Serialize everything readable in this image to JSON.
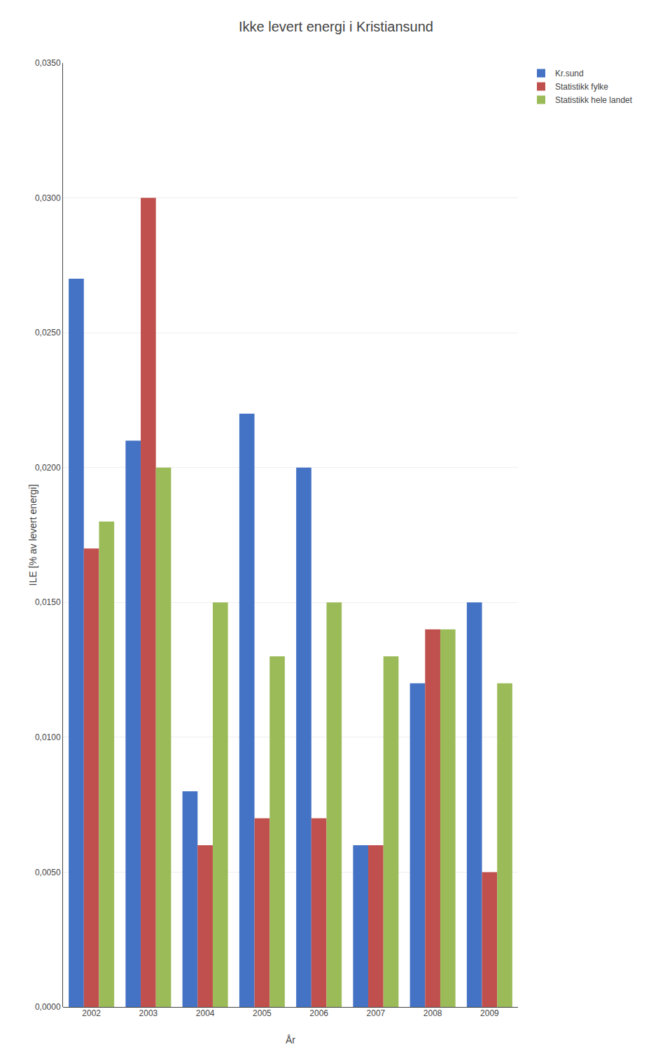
{
  "chart_data": {
    "type": "bar",
    "title": "Ikke levert energi i Kristiansund",
    "x_label": "År",
    "y_label": "ILE [% av levert energi]",
    "categories": [
      "2002",
      "2003",
      "2004",
      "2005",
      "2006",
      "2007",
      "2008",
      "2009"
    ],
    "series": [
      {
        "name": "Kr.sund",
        "color": "#4472C4",
        "values": [
          0.027,
          0.021,
          0.008,
          0.022,
          0.02,
          0.006,
          0.012,
          0.015
        ]
      },
      {
        "name": "Statistikk fylke",
        "color": "#C0504D",
        "values": [
          0.017,
          0.03,
          0.006,
          0.007,
          0.007,
          0.006,
          0.014,
          0.005
        ]
      },
      {
        "name": "Statistikk hele landet",
        "color": "#9BBB59",
        "values": [
          0.018,
          0.02,
          0.015,
          0.013,
          0.015,
          0.013,
          0.014,
          0.012
        ]
      }
    ],
    "ylim": [
      0,
      0.035
    ],
    "yticks": [
      {
        "value": 0,
        "label": "0,0000"
      },
      {
        "value": 0.005,
        "label": "0,0050"
      },
      {
        "value": 0.01,
        "label": "0,0100"
      },
      {
        "value": 0.015,
        "label": "0,0150"
      },
      {
        "value": 0.02,
        "label": "0,0200"
      },
      {
        "value": 0.025,
        "label": "0,0250"
      },
      {
        "value": 0.03,
        "label": "0,0300"
      },
      {
        "value": 0.035,
        "label": "0,0350"
      }
    ],
    "grid": true,
    "legend": "right"
  }
}
